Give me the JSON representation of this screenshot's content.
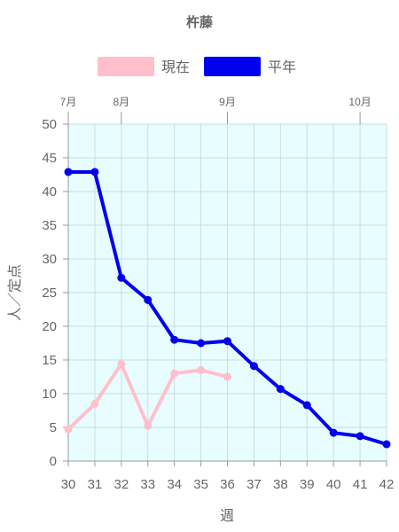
{
  "chart_data": {
    "type": "line",
    "title": "杵藤",
    "xlabel": "週",
    "ylabel": "人／定点",
    "categories": [
      "30",
      "31",
      "32",
      "33",
      "34",
      "35",
      "36",
      "37",
      "38",
      "39",
      "40",
      "41",
      "42"
    ],
    "ylim": [
      0,
      50
    ],
    "yticks": [
      0,
      5,
      10,
      15,
      20,
      25,
      30,
      35,
      40,
      45,
      50
    ],
    "month_labels": [
      {
        "label": "7月",
        "at_week": 30
      },
      {
        "label": "8月",
        "at_week": 32
      },
      {
        "label": "9月",
        "at_week": 36
      },
      {
        "label": "10月",
        "at_week": 41
      }
    ],
    "grid": true,
    "legend_position": "top",
    "plot_background": "#e8fdff",
    "series": [
      {
        "name": "現在",
        "color": "#ffc0cb",
        "values": [
          4.7,
          8.5,
          14.4,
          5.2,
          13.0,
          13.5,
          12.5,
          null,
          null,
          null,
          null,
          null,
          null
        ]
      },
      {
        "name": "平年",
        "color": "#0000ee",
        "values": [
          42.9,
          42.9,
          27.2,
          23.9,
          18.0,
          17.5,
          17.8,
          14.1,
          10.7,
          8.3,
          4.2,
          3.7,
          2.5
        ]
      }
    ]
  }
}
